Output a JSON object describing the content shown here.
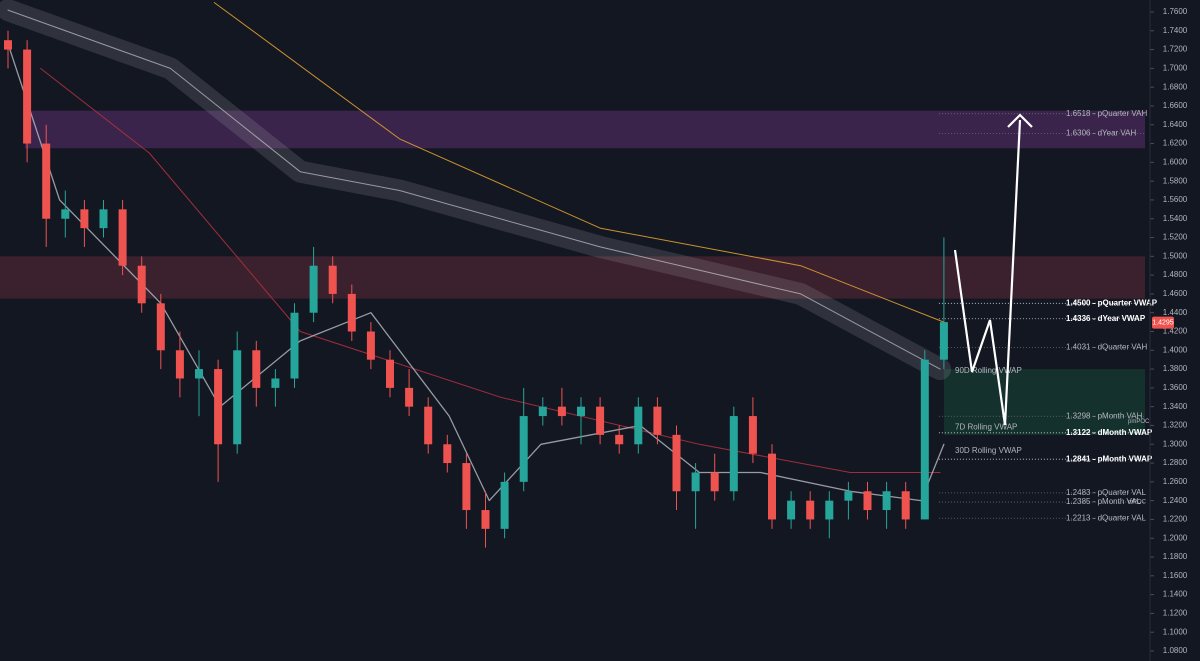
{
  "chart_data": {
    "type": "candlestick",
    "up_color": "#26a69a",
    "down_color": "#ef5350",
    "background": "#131722",
    "ylim": [
      1.08,
      1.76
    ],
    "yticks": [
      {
        "value": 1.08,
        "label": "1.0800"
      },
      {
        "value": 1.1,
        "label": "1.1000"
      },
      {
        "value": 1.12,
        "label": "1.1200"
      },
      {
        "value": 1.14,
        "label": "1.1400"
      },
      {
        "value": 1.16,
        "label": "1.1600"
      },
      {
        "value": 1.18,
        "label": "1.1800"
      },
      {
        "value": 1.2,
        "label": "1.2000"
      },
      {
        "value": 1.22,
        "label": "1.2200"
      },
      {
        "value": 1.24,
        "label": "1.2400"
      },
      {
        "value": 1.26,
        "label": "1.2600"
      },
      {
        "value": 1.28,
        "label": "1.2800"
      },
      {
        "value": 1.3,
        "label": "1.3000"
      },
      {
        "value": 1.32,
        "label": "1.3200"
      },
      {
        "value": 1.34,
        "label": "1.3400"
      },
      {
        "value": 1.36,
        "label": "1.3600"
      },
      {
        "value": 1.38,
        "label": "1.3800"
      },
      {
        "value": 1.4,
        "label": "1.4000"
      },
      {
        "value": 1.42,
        "label": "1.4200"
      },
      {
        "value": 1.44,
        "label": "1.4400"
      },
      {
        "value": 1.46,
        "label": "1.4600"
      },
      {
        "value": 1.48,
        "label": "1.4800"
      },
      {
        "value": 1.5,
        "label": "1.5000"
      },
      {
        "value": 1.52,
        "label": "1.5200"
      },
      {
        "value": 1.54,
        "label": "1.5400"
      },
      {
        "value": 1.56,
        "label": "1.5600"
      },
      {
        "value": 1.58,
        "label": "1.5800"
      },
      {
        "value": 1.6,
        "label": "1.6000"
      },
      {
        "value": 1.62,
        "label": "1.6200"
      },
      {
        "value": 1.64,
        "label": "1.6400"
      },
      {
        "value": 1.66,
        "label": "1.6600"
      },
      {
        "value": 1.68,
        "label": "1.6800"
      },
      {
        "value": 1.7,
        "label": "1.7000"
      },
      {
        "value": 1.72,
        "label": "1.7200"
      },
      {
        "value": 1.74,
        "label": "1.7400"
      },
      {
        "value": 1.76,
        "label": "1.7600"
      }
    ],
    "candles": [
      [
        1.73,
        1.74,
        1.7,
        1.72
      ],
      [
        1.72,
        1.73,
        1.6,
        1.62
      ],
      [
        1.62,
        1.64,
        1.51,
        1.54
      ],
      [
        1.54,
        1.57,
        1.52,
        1.55
      ],
      [
        1.55,
        1.56,
        1.51,
        1.53
      ],
      [
        1.53,
        1.56,
        1.52,
        1.55
      ],
      [
        1.55,
        1.56,
        1.48,
        1.49
      ],
      [
        1.49,
        1.5,
        1.44,
        1.45
      ],
      [
        1.45,
        1.46,
        1.38,
        1.4
      ],
      [
        1.4,
        1.42,
        1.35,
        1.37
      ],
      [
        1.37,
        1.4,
        1.33,
        1.38
      ],
      [
        1.38,
        1.39,
        1.26,
        1.3
      ],
      [
        1.3,
        1.42,
        1.29,
        1.4
      ],
      [
        1.4,
        1.41,
        1.34,
        1.36
      ],
      [
        1.36,
        1.38,
        1.34,
        1.37
      ],
      [
        1.37,
        1.45,
        1.36,
        1.44
      ],
      [
        1.44,
        1.51,
        1.43,
        1.49
      ],
      [
        1.49,
        1.5,
        1.45,
        1.46
      ],
      [
        1.46,
        1.47,
        1.41,
        1.42
      ],
      [
        1.42,
        1.43,
        1.38,
        1.39
      ],
      [
        1.39,
        1.4,
        1.35,
        1.36
      ],
      [
        1.36,
        1.38,
        1.33,
        1.34
      ],
      [
        1.34,
        1.35,
        1.29,
        1.3
      ],
      [
        1.3,
        1.31,
        1.27,
        1.28
      ],
      [
        1.28,
        1.29,
        1.21,
        1.23
      ],
      [
        1.23,
        1.25,
        1.19,
        1.21
      ],
      [
        1.21,
        1.27,
        1.2,
        1.26
      ],
      [
        1.26,
        1.36,
        1.25,
        1.33
      ],
      [
        1.33,
        1.35,
        1.32,
        1.34
      ],
      [
        1.34,
        1.36,
        1.32,
        1.33
      ],
      [
        1.33,
        1.35,
        1.3,
        1.34
      ],
      [
        1.34,
        1.35,
        1.3,
        1.31
      ],
      [
        1.31,
        1.32,
        1.29,
        1.3
      ],
      [
        1.3,
        1.35,
        1.29,
        1.34
      ],
      [
        1.34,
        1.35,
        1.3,
        1.31
      ],
      [
        1.31,
        1.32,
        1.23,
        1.25
      ],
      [
        1.25,
        1.28,
        1.21,
        1.27
      ],
      [
        1.27,
        1.29,
        1.24,
        1.25
      ],
      [
        1.25,
        1.34,
        1.24,
        1.33
      ],
      [
        1.33,
        1.35,
        1.28,
        1.29
      ],
      [
        1.29,
        1.3,
        1.21,
        1.22
      ],
      [
        1.22,
        1.25,
        1.21,
        1.24
      ],
      [
        1.24,
        1.25,
        1.21,
        1.22
      ],
      [
        1.22,
        1.25,
        1.2,
        1.24
      ],
      [
        1.24,
        1.26,
        1.22,
        1.25
      ],
      [
        1.25,
        1.26,
        1.22,
        1.23
      ],
      [
        1.23,
        1.26,
        1.21,
        1.25
      ],
      [
        1.25,
        1.26,
        1.21,
        1.22
      ],
      [
        1.22,
        1.4,
        1.22,
        1.39
      ],
      [
        1.39,
        1.52,
        1.38,
        1.43
      ]
    ],
    "lines": [
      {
        "color": "#9598a1",
        "width": 22,
        "opacity": 0.22,
        "x": [
          0,
          8.5,
          15.3,
          20.5,
          31,
          41.5,
          48.8
        ],
        "values": [
          1.762,
          1.7,
          1.59,
          1.57,
          1.51,
          1.46,
          1.38
        ]
      },
      {
        "color": "#c8c8c8",
        "width": 1,
        "opacity": 0.7,
        "x": [
          0,
          8.5,
          15.3,
          20.5,
          31,
          41.5,
          48.8
        ],
        "values": [
          1.762,
          1.7,
          1.59,
          1.57,
          1.51,
          1.46,
          1.38
        ]
      },
      {
        "color": "#e0a030",
        "width": 1,
        "opacity": 0.9,
        "x": [
          10.8,
          20.5,
          31,
          41.5,
          49
        ],
        "values": [
          1.77,
          1.625,
          1.53,
          1.49,
          1.43
        ]
      },
      {
        "color": "#b03040",
        "width": 1,
        "opacity": 0.9,
        "x": [
          1.7,
          7.4,
          15.3,
          25.8,
          36.2,
          44.1,
          48.8
        ],
        "values": [
          1.7,
          1.61,
          1.42,
          1.35,
          1.3,
          1.27,
          1.27
        ]
      },
      {
        "color": "#b0b3ba",
        "width": 1.3,
        "opacity": 0.85,
        "x": [
          0.1,
          2.7,
          8,
          11.1,
          15.3,
          19,
          23.1,
          25.2,
          27.9,
          33.1,
          36.2,
          39.4,
          44.1,
          47.8,
          49
        ],
        "values": [
          1.72,
          1.56,
          1.45,
          1.34,
          1.41,
          1.44,
          1.33,
          1.24,
          1.3,
          1.32,
          1.27,
          1.27,
          1.25,
          1.24,
          1.3
        ]
      }
    ],
    "zones": [
      {
        "from": 1.615,
        "to": 1.655,
        "color": "#4a2a5a"
      },
      {
        "from": 1.455,
        "to": 1.5,
        "color": "#4a2433"
      },
      {
        "from": 1.31,
        "to": 1.38,
        "color": "#173b33"
      }
    ],
    "levels": [
      {
        "value": 1.6518,
        "label": "1.6518 - pQuarter VAH",
        "bold": false
      },
      {
        "value": 1.6306,
        "label": "1.6306 - dYear VAH",
        "bold": false
      },
      {
        "value": 1.45,
        "label": "1.4500 - pQuarter VWAP",
        "bold": true
      },
      {
        "value": 1.4336,
        "label": "1.4336 - dYear VWAP",
        "bold": true
      },
      {
        "value": 1.4031,
        "label": "1.4031 - dQuarter VAH",
        "bold": false
      },
      {
        "value": 1.3298,
        "label": "1.3298 - pMonth VAH",
        "bold": false
      },
      {
        "value": 1.3122,
        "label": "1.3122 - dMonth VWAP",
        "bold": true
      },
      {
        "value": 1.2841,
        "label": "1.2841 - pMonth VWAP",
        "bold": true
      },
      {
        "value": 1.2483,
        "label": "1.2483 - pQuarter VAL",
        "bold": false
      },
      {
        "value": 1.2385,
        "label": "1.2385 - pMonth VAL",
        "bold": false
      },
      {
        "value": 1.2213,
        "label": "1.2213 - dQuarter VAL",
        "bold": false
      }
    ],
    "rolling": [
      {
        "value": 1.378,
        "label": "90D Rolling VWAP"
      },
      {
        "value": 1.318,
        "label": "7D Rolling VWAP"
      },
      {
        "value": 1.293,
        "label": "30D Rolling VWAP"
      }
    ],
    "pocs": [
      {
        "value": 1.3245,
        "label": "pmPOC"
      },
      {
        "value": 1.2385,
        "label": "mPOC"
      }
    ],
    "last_price": {
      "value": 1.4295,
      "label": "1.4295"
    }
  }
}
